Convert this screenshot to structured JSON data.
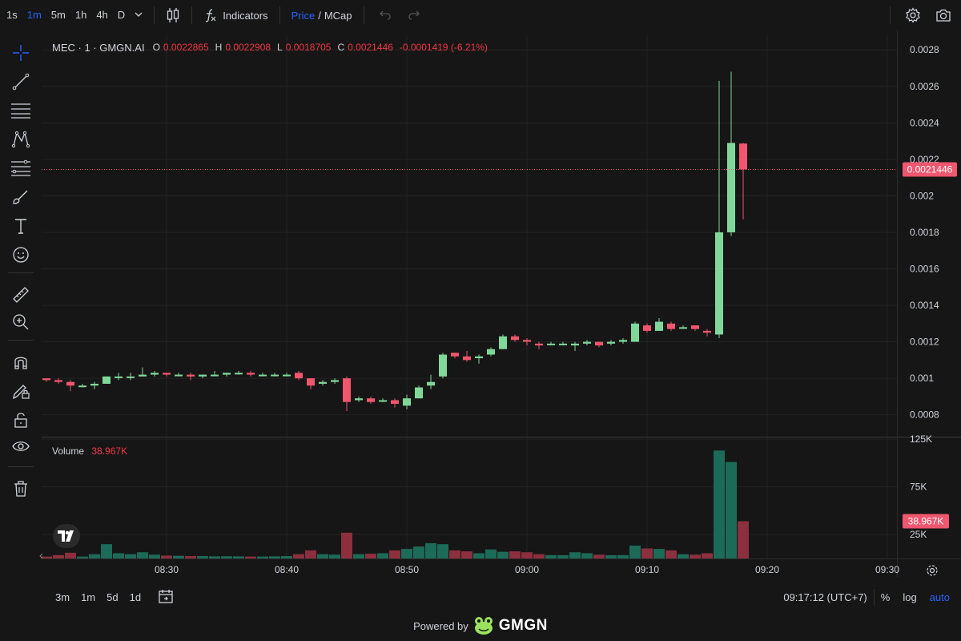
{
  "toolbar": {
    "timeframes": [
      "1s",
      "1m",
      "5m",
      "1h",
      "4h",
      "D"
    ],
    "active_timeframe": "1m",
    "indicators_label": "Indicators",
    "price_label": "Price",
    "slash": "/",
    "mcap_label": "MCap"
  },
  "legend": {
    "symbol": "MEC · 1 · GMGN.AI",
    "o_label": "O",
    "o": "0.0022865",
    "h_label": "H",
    "h": "0.0022908",
    "l_label": "L",
    "l": "0.0018705",
    "c_label": "C",
    "c": "0.0021446",
    "change": "-0.0001419 (-6.21%)"
  },
  "volume_legend": {
    "label": "Volume",
    "value": "38.967K"
  },
  "bottom": {
    "ranges": [
      "3m",
      "1m",
      "5d",
      "1d"
    ],
    "clock": "09:17:12 (UTC+7)",
    "percent": "%",
    "log": "log",
    "auto": "auto"
  },
  "powered": {
    "text": "Powered by",
    "brand": "GMGN"
  },
  "colors": {
    "up": "#7fd89a",
    "down": "#f0566e",
    "vol_up": "#1c6b58",
    "vol_down": "#8c2f3e",
    "accent": "#2962ff",
    "price_tag": "#f0566e"
  },
  "chart_data": {
    "type": "candlestick",
    "x_ticks": [
      "08:30",
      "08:40",
      "08:50",
      "09:00",
      "09:10",
      "09:20",
      "09:30"
    ],
    "x_tick_minutes": [
      510,
      520,
      530,
      540,
      550,
      560,
      570
    ],
    "price_ticks": [
      "0.0028",
      "0.0026",
      "0.0024",
      "0.0022",
      "0.002",
      "0.0018",
      "0.0016",
      "0.0014",
      "0.0012",
      "0.001",
      "0.0008"
    ],
    "price_tick_values": [
      0.0028,
      0.0026,
      0.0024,
      0.0022,
      0.002,
      0.0018,
      0.0016,
      0.0014,
      0.0012,
      0.001,
      0.0008
    ],
    "price_range": [
      0.00068,
      0.00288
    ],
    "volume_ticks": [
      "125K",
      "75K",
      "25K"
    ],
    "volume_tick_values": [
      125000,
      75000,
      25000
    ],
    "volume_range": [
      0,
      125000
    ],
    "last_price": 0.0021446,
    "last_price_label": "0.0021446",
    "last_volume_label": "38.967K",
    "last_volume": 38967,
    "grid": true,
    "candles": [
      {
        "t": 500,
        "o": 0.001,
        "h": 0.001,
        "l": 0.00098,
        "c": 0.00099,
        "v": 2000
      },
      {
        "t": 501,
        "o": 0.00099,
        "h": 0.001,
        "l": 0.00097,
        "c": 0.00098,
        "v": 3500
      },
      {
        "t": 502,
        "o": 0.00098,
        "h": 0.00099,
        "l": 0.00093,
        "c": 0.00096,
        "v": 6000
      },
      {
        "t": 503,
        "o": 0.00096,
        "h": 0.00097,
        "l": 0.00095,
        "c": 0.00096,
        "v": 2000
      },
      {
        "t": 504,
        "o": 0.00096,
        "h": 0.00098,
        "l": 0.00094,
        "c": 0.00097,
        "v": 4500
      },
      {
        "t": 505,
        "o": 0.00097,
        "h": 0.00101,
        "l": 0.00097,
        "c": 0.00101,
        "v": 15000
      },
      {
        "t": 506,
        "o": 0.00101,
        "h": 0.00103,
        "l": 0.00099,
        "c": 0.00101,
        "v": 5500
      },
      {
        "t": 507,
        "o": 0.00101,
        "h": 0.00103,
        "l": 0.00099,
        "c": 0.00101,
        "v": 4500
      },
      {
        "t": 508,
        "o": 0.00101,
        "h": 0.00106,
        "l": 0.00101,
        "c": 0.00102,
        "v": 6500
      },
      {
        "t": 509,
        "o": 0.00102,
        "h": 0.00104,
        "l": 0.00101,
        "c": 0.00103,
        "v": 4000
      },
      {
        "t": 510,
        "o": 0.00103,
        "h": 0.00103,
        "l": 0.00101,
        "c": 0.00102,
        "v": 3000
      },
      {
        "t": 511,
        "o": 0.00102,
        "h": 0.00103,
        "l": 0.00101,
        "c": 0.00102,
        "v": 2800
      },
      {
        "t": 512,
        "o": 0.00102,
        "h": 0.00103,
        "l": 0.00099,
        "c": 0.00101,
        "v": 2500
      },
      {
        "t": 513,
        "o": 0.00101,
        "h": 0.00102,
        "l": 0.001,
        "c": 0.00102,
        "v": 2500
      },
      {
        "t": 514,
        "o": 0.00102,
        "h": 0.00104,
        "l": 0.00101,
        "c": 0.00102,
        "v": 2200
      },
      {
        "t": 515,
        "o": 0.00102,
        "h": 0.00103,
        "l": 0.00101,
        "c": 0.00103,
        "v": 2300
      },
      {
        "t": 516,
        "o": 0.00103,
        "h": 0.00104,
        "l": 0.00102,
        "c": 0.00103,
        "v": 2200
      },
      {
        "t": 517,
        "o": 0.00103,
        "h": 0.00104,
        "l": 0.00101,
        "c": 0.00102,
        "v": 2000
      },
      {
        "t": 518,
        "o": 0.00102,
        "h": 0.00103,
        "l": 0.00101,
        "c": 0.00102,
        "v": 2000
      },
      {
        "t": 519,
        "o": 0.00102,
        "h": 0.00103,
        "l": 0.00101,
        "c": 0.00102,
        "v": 2200
      },
      {
        "t": 520,
        "o": 0.00102,
        "h": 0.00103,
        "l": 0.00101,
        "c": 0.00102,
        "v": 2500
      },
      {
        "t": 521,
        "o": 0.00103,
        "h": 0.00104,
        "l": 0.00099,
        "c": 0.001,
        "v": 4500
      },
      {
        "t": 522,
        "o": 0.001,
        "h": 0.001,
        "l": 0.00094,
        "c": 0.00096,
        "v": 8500
      },
      {
        "t": 523,
        "o": 0.00097,
        "h": 0.00099,
        "l": 0.00096,
        "c": 0.00098,
        "v": 4500
      },
      {
        "t": 524,
        "o": 0.00098,
        "h": 0.001,
        "l": 0.00097,
        "c": 0.00099,
        "v": 4000
      },
      {
        "t": 525,
        "o": 0.001,
        "h": 0.00101,
        "l": 0.00082,
        "c": 0.00087,
        "v": 27000
      },
      {
        "t": 526,
        "o": 0.00088,
        "h": 0.0009,
        "l": 0.00087,
        "c": 0.00089,
        "v": 4500
      },
      {
        "t": 527,
        "o": 0.00089,
        "h": 0.0009,
        "l": 0.00086,
        "c": 0.00087,
        "v": 5000
      },
      {
        "t": 528,
        "o": 0.00088,
        "h": 0.00089,
        "l": 0.00087,
        "c": 0.00088,
        "v": 5500
      },
      {
        "t": 529,
        "o": 0.00088,
        "h": 0.00089,
        "l": 0.00084,
        "c": 0.00086,
        "v": 8500
      },
      {
        "t": 530,
        "o": 0.00085,
        "h": 0.00091,
        "l": 0.00083,
        "c": 0.00089,
        "v": 10000
      },
      {
        "t": 531,
        "o": 0.00089,
        "h": 0.00096,
        "l": 0.00089,
        "c": 0.00095,
        "v": 12500
      },
      {
        "t": 532,
        "o": 0.00096,
        "h": 0.00102,
        "l": 0.00094,
        "c": 0.00098,
        "v": 16000
      },
      {
        "t": 533,
        "o": 0.00101,
        "h": 0.00114,
        "l": 0.001,
        "c": 0.00113,
        "v": 15000
      },
      {
        "t": 534,
        "o": 0.00114,
        "h": 0.00114,
        "l": 0.00111,
        "c": 0.00112,
        "v": 8500
      },
      {
        "t": 535,
        "o": 0.00112,
        "h": 0.00115,
        "l": 0.00109,
        "c": 0.0011,
        "v": 7500
      },
      {
        "t": 536,
        "o": 0.00111,
        "h": 0.00113,
        "l": 0.00108,
        "c": 0.00112,
        "v": 5500
      },
      {
        "t": 537,
        "o": 0.00113,
        "h": 0.00117,
        "l": 0.00112,
        "c": 0.00116,
        "v": 9500
      },
      {
        "t": 538,
        "o": 0.00116,
        "h": 0.00124,
        "l": 0.00116,
        "c": 0.00123,
        "v": 7000
      },
      {
        "t": 539,
        "o": 0.00123,
        "h": 0.00124,
        "l": 0.0012,
        "c": 0.00121,
        "v": 7500
      },
      {
        "t": 540,
        "o": 0.00121,
        "h": 0.00122,
        "l": 0.00118,
        "c": 0.0012,
        "v": 6500
      },
      {
        "t": 541,
        "o": 0.00119,
        "h": 0.0012,
        "l": 0.00116,
        "c": 0.00118,
        "v": 4500
      },
      {
        "t": 542,
        "o": 0.00119,
        "h": 0.0012,
        "l": 0.00118,
        "c": 0.00119,
        "v": 3500
      },
      {
        "t": 543,
        "o": 0.00119,
        "h": 0.0012,
        "l": 0.00118,
        "c": 0.00119,
        "v": 3500
      },
      {
        "t": 544,
        "o": 0.00118,
        "h": 0.0012,
        "l": 0.00115,
        "c": 0.00119,
        "v": 6500
      },
      {
        "t": 545,
        "o": 0.00119,
        "h": 0.00121,
        "l": 0.00118,
        "c": 0.0012,
        "v": 5500
      },
      {
        "t": 546,
        "o": 0.0012,
        "h": 0.0012,
        "l": 0.00117,
        "c": 0.00118,
        "v": 4000
      },
      {
        "t": 547,
        "o": 0.00119,
        "h": 0.00121,
        "l": 0.00118,
        "c": 0.0012,
        "v": 3500
      },
      {
        "t": 548,
        "o": 0.0012,
        "h": 0.00122,
        "l": 0.00119,
        "c": 0.00121,
        "v": 3500
      },
      {
        "t": 549,
        "o": 0.0012,
        "h": 0.00131,
        "l": 0.0012,
        "c": 0.0013,
        "v": 13500
      },
      {
        "t": 550,
        "o": 0.00129,
        "h": 0.0013,
        "l": 0.00125,
        "c": 0.00126,
        "v": 10500
      },
      {
        "t": 551,
        "o": 0.00126,
        "h": 0.00133,
        "l": 0.00126,
        "c": 0.00131,
        "v": 10000
      },
      {
        "t": 552,
        "o": 0.0013,
        "h": 0.00131,
        "l": 0.00126,
        "c": 0.00127,
        "v": 8500
      },
      {
        "t": 553,
        "o": 0.00128,
        "h": 0.00129,
        "l": 0.00127,
        "c": 0.00128,
        "v": 4500
      },
      {
        "t": 554,
        "o": 0.00129,
        "h": 0.00129,
        "l": 0.00126,
        "c": 0.00127,
        "v": 4000
      },
      {
        "t": 555,
        "o": 0.00126,
        "h": 0.00127,
        "l": 0.00123,
        "c": 0.00125,
        "v": 5500
      },
      {
        "t": 556,
        "o": 0.00124,
        "h": 0.00263,
        "l": 0.00122,
        "c": 0.0018,
        "v": 113000
      },
      {
        "t": 557,
        "o": 0.0018,
        "h": 0.00268,
        "l": 0.00178,
        "c": 0.00229,
        "v": 101000
      },
      {
        "t": 558,
        "o": 0.0022865,
        "h": 0.0022908,
        "l": 0.0018705,
        "c": 0.0021446,
        "v": 38967
      }
    ]
  }
}
